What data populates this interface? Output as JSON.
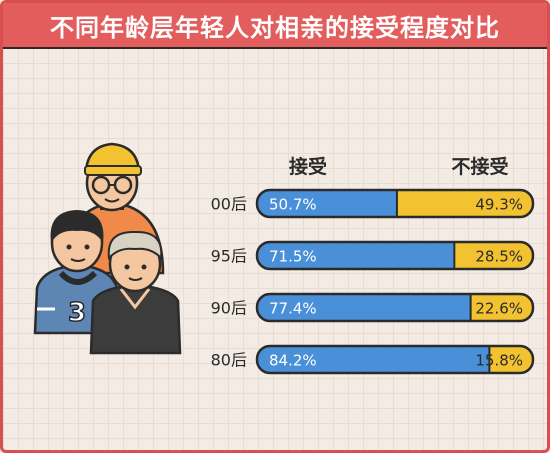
{
  "title": "不同年龄层年轻人对相亲的接受程度对比",
  "chart_data": {
    "type": "bar",
    "orientation": "horizontal",
    "stacked": true,
    "title": "不同年龄层年轻人对相亲的接受程度对比",
    "categories": [
      "00后",
      "95后",
      "90后",
      "80后"
    ],
    "series": [
      {
        "name": "接受",
        "values": [
          50.7,
          71.5,
          77.4,
          84.2
        ],
        "labels": [
          "50.7%",
          "71.5%",
          "77.4%",
          "84.2%"
        ],
        "color": "#4a90d9"
      },
      {
        "name": "不接受",
        "values": [
          49.3,
          28.5,
          22.6,
          15.8
        ],
        "labels": [
          "49.3%",
          "28.5%",
          "22.6%",
          "15.8%"
        ],
        "color": "#f2c230"
      }
    ],
    "xlim": [
      0,
      100
    ],
    "grid": false,
    "legend": "top"
  },
  "colors": {
    "accent": "#e25d5b",
    "accept": "#4a90d9",
    "reject": "#f2c230",
    "outline": "#2b2b2b"
  },
  "illustration": {
    "icon": "three-young-people-illustration",
    "shirt_number": "3"
  }
}
